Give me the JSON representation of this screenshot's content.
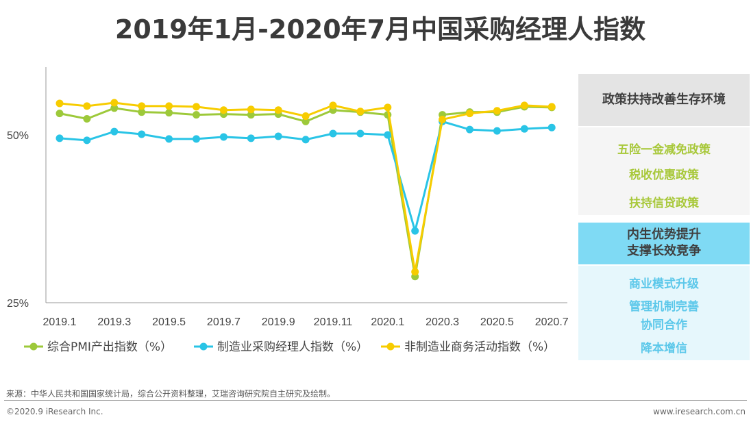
{
  "title": "2019年1月-2020年7月中国采购经理人指数",
  "chart_data": {
    "type": "line",
    "title": "2019年1月-2020年7月中国采购经理人指数",
    "x": [
      "2019.1",
      "2019.2",
      "2019.3",
      "2019.4",
      "2019.5",
      "2019.6",
      "2019.7",
      "2019.8",
      "2019.9",
      "2019.10",
      "2019.11",
      "2019.12",
      "2020.1",
      "2020.2",
      "2020.3",
      "2020.4",
      "2020.5",
      "2020.6",
      "2020.7"
    ],
    "xtick_labels": [
      "2019.1",
      "2019.3",
      "2019.5",
      "2019.7",
      "2019.9",
      "2019.11",
      "2020.1",
      "2020.3",
      "2020.5",
      "2020.7"
    ],
    "ytick_labels": [
      "50%",
      "25%"
    ],
    "ylim": [
      25,
      60
    ],
    "grid": false,
    "legend_position": "bottom",
    "series": [
      {
        "name": "综合PMI产出指数（%）",
        "color": "#9dc93a",
        "values": [
          53.2,
          52.4,
          54.0,
          53.4,
          53.3,
          53.0,
          53.1,
          53.0,
          53.1,
          52.0,
          53.7,
          53.4,
          53.0,
          28.9,
          53.0,
          53.4,
          53.4,
          54.2,
          54.1
        ]
      },
      {
        "name": "制造业采购经理人指数（%）",
        "color": "#29c4e6",
        "values": [
          49.5,
          49.2,
          50.5,
          50.1,
          49.4,
          49.4,
          49.7,
          49.5,
          49.8,
          49.3,
          50.2,
          50.2,
          50.0,
          35.7,
          52.0,
          50.8,
          50.6,
          50.9,
          51.1
        ]
      },
      {
        "name": "非制造业商务活动指数（%）",
        "color": "#f7cc00",
        "values": [
          54.7,
          54.3,
          54.8,
          54.3,
          54.3,
          54.2,
          53.7,
          53.8,
          53.7,
          52.8,
          54.4,
          53.5,
          54.1,
          29.6,
          52.3,
          53.2,
          53.6,
          54.4,
          54.2
        ]
      }
    ]
  },
  "side": {
    "panel1": {
      "heading": "政策扶持改善生存环境",
      "items": [
        "五险一金减免政策",
        "税收优惠政策",
        "扶持信贷政策"
      ]
    },
    "panel2": {
      "heading1": "内生优势提升",
      "heading2": "支撑长效竞争",
      "items": [
        "商业模式升级",
        "管理机制完善",
        "协同合作",
        "降本增信"
      ]
    }
  },
  "footer": {
    "source": "来源：中华人民共和国国家统计局，综合公开资料整理，艾瑞咨询研究院自主研究及绘制。",
    "copyright": "©2020.9 iResearch Inc.",
    "website": "www.iresearch.com.cn"
  }
}
